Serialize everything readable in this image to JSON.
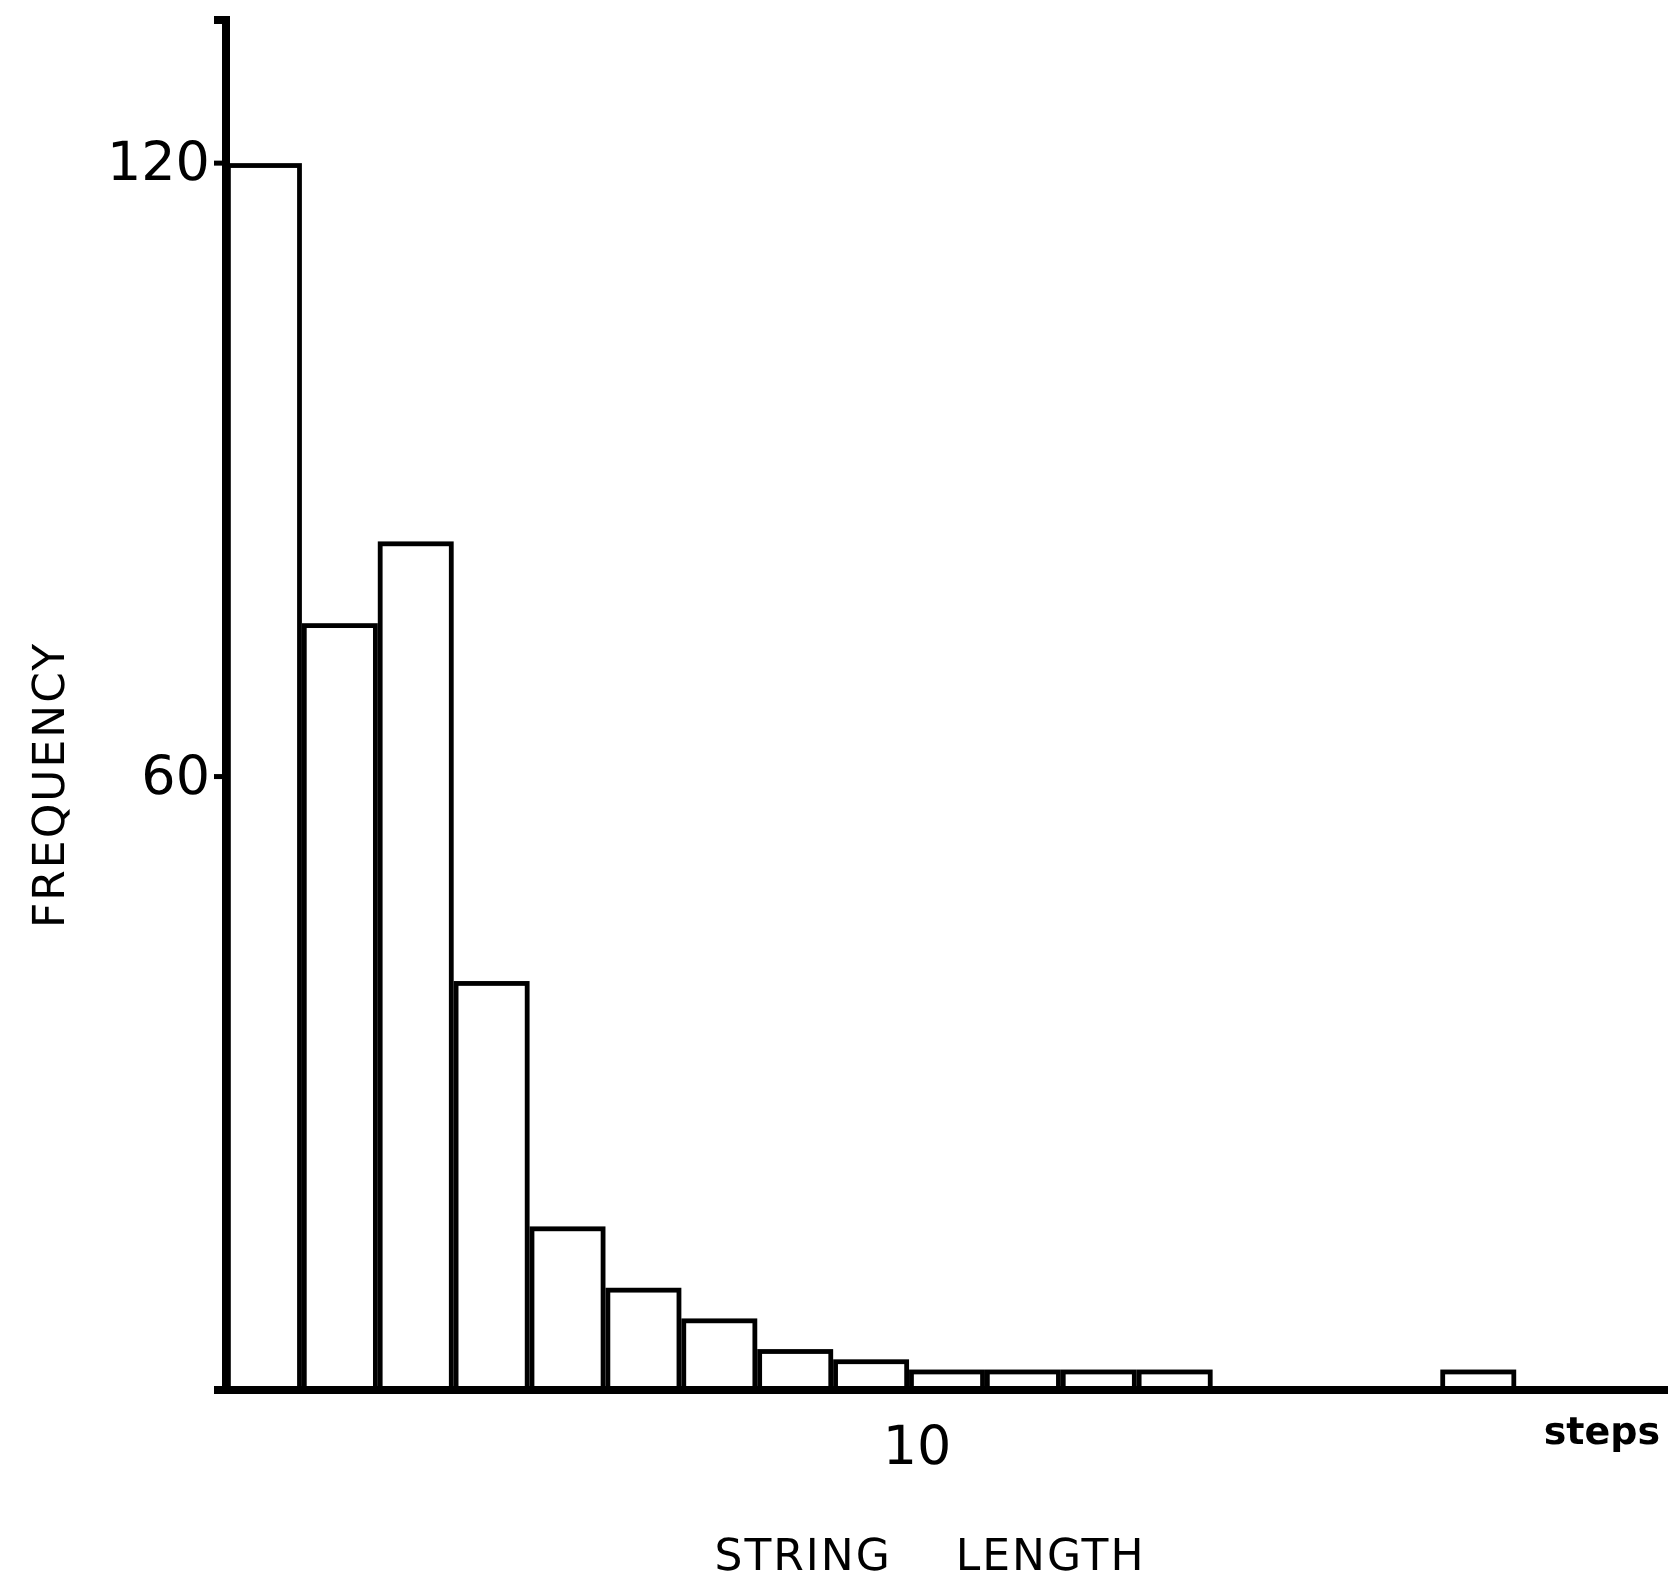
{
  "chart_data": {
    "type": "bar",
    "xlabel": "STRING    LENGTH",
    "ylabel": "FREQUENCY",
    "categories": [
      null,
      null,
      null,
      null,
      null,
      null,
      null,
      null,
      null,
      null,
      null,
      null,
      null,
      null,
      null,
      null,
      null,
      null,
      null
    ],
    "values": [
      120,
      75,
      83,
      40,
      16,
      10,
      7,
      4,
      3,
      2,
      2,
      2,
      2,
      0,
      0,
      0,
      2,
      null,
      null
    ],
    "color": "#ffffff",
    "ylim": [
      0,
      134
    ],
    "yticks": [
      60,
      120
    ],
    "annotations": [
      "10",
      "steps"
    ],
    "grid": false
  }
}
